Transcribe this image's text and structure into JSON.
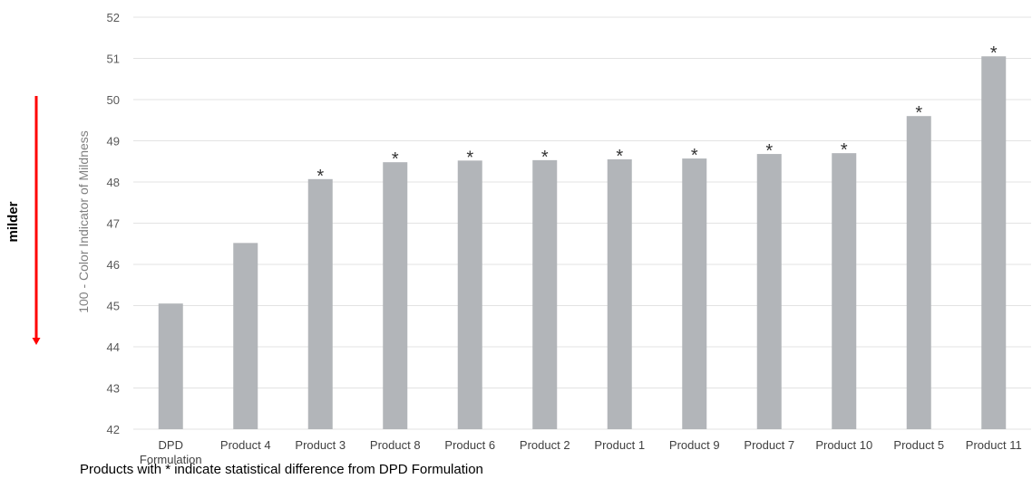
{
  "chart_data": {
    "type": "bar",
    "categories": [
      "DPD Formulation",
      "Product 4",
      "Product 3",
      "Product 8",
      "Product 6",
      "Product 2",
      "Product 1",
      "Product 9",
      "Product 7",
      "Product 10",
      "Product 5",
      "Product 11"
    ],
    "category_lines": [
      [
        "DPD",
        "Formulation"
      ],
      [
        "Product 4"
      ],
      [
        "Product 3"
      ],
      [
        "Product 8"
      ],
      [
        "Product 6"
      ],
      [
        "Product 2"
      ],
      [
        "Product 1"
      ],
      [
        "Product 9"
      ],
      [
        "Product 7"
      ],
      [
        "Product 10"
      ],
      [
        "Product 5"
      ],
      [
        "Product 11"
      ]
    ],
    "values": [
      45.05,
      46.52,
      48.07,
      48.48,
      48.52,
      48.53,
      48.55,
      48.57,
      48.68,
      48.7,
      49.6,
      51.05
    ],
    "significant": [
      false,
      false,
      true,
      true,
      true,
      true,
      true,
      true,
      true,
      true,
      true,
      true
    ],
    "significance_marker": "*",
    "ylabel": "100 - Color Indicator of Mildness",
    "ylim": [
      42,
      52
    ],
    "yticks": [
      42,
      43,
      44,
      45,
      46,
      47,
      48,
      49,
      50,
      51,
      52
    ],
    "grid": true,
    "bar_color": "#b2b5b9",
    "grid_color": "#e3e3e3"
  },
  "annotation": {
    "direction_label": "milder",
    "arrow_color": "#ff0000"
  },
  "footnote": "Products with * indicate statistical difference from DPD Formulation"
}
